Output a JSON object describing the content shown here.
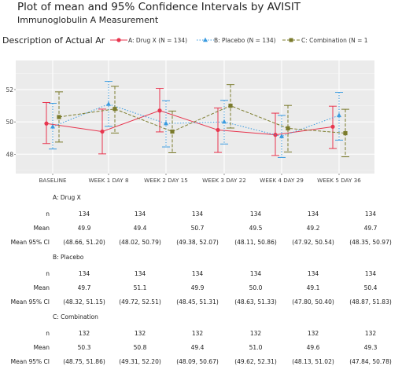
{
  "title": "Plot of mean and 95% Confidence Intervals by AVISIT",
  "subtitle": "Immunoglobulin A Measurement",
  "legend": {
    "title": "Description of Actual Ar",
    "items": [
      {
        "label": "A: Drug X (N = 134)",
        "color": "#e8364f",
        "marker": "circle",
        "dash": "solid"
      },
      {
        "label": "B: Placebo (N = 134)",
        "color": "#3a9be0",
        "marker": "triangle",
        "dash": "dotted"
      },
      {
        "label": "C: Combination (N = 1",
        "color": "#7b7b2c",
        "marker": "square",
        "dash": "dashed"
      }
    ]
  },
  "chart_data": {
    "type": "line",
    "categories": [
      "BASELINE",
      "WEEK 1 DAY 8",
      "WEEK 2 DAY 15",
      "WEEK 3 DAY 22",
      "WEEK 4 DAY 29",
      "WEEK 5 DAY 36"
    ],
    "ylim": [
      46.8,
      53.8
    ],
    "yticks": [
      48,
      50,
      52
    ],
    "grid": true,
    "legend_position": "top",
    "series": [
      {
        "name": "A: Drug X",
        "color": "#e8364f",
        "values": [
          49.9,
          49.4,
          50.7,
          49.5,
          49.2,
          49.7
        ],
        "lower": [
          48.66,
          48.02,
          49.38,
          48.11,
          47.92,
          48.35
        ],
        "upper": [
          51.2,
          50.79,
          52.07,
          50.86,
          50.54,
          50.97
        ]
      },
      {
        "name": "B: Placebo",
        "color": "#3a9be0",
        "values": [
          49.7,
          51.1,
          49.9,
          50.0,
          49.1,
          50.4
        ],
        "lower": [
          48.32,
          49.72,
          48.45,
          48.63,
          47.8,
          48.87
        ],
        "upper": [
          51.15,
          52.51,
          51.31,
          51.33,
          50.4,
          51.83
        ]
      },
      {
        "name": "C: Combination",
        "color": "#7b7b2c",
        "values": [
          50.3,
          50.8,
          49.4,
          51.0,
          49.6,
          49.3
        ],
        "lower": [
          48.75,
          49.31,
          48.09,
          49.62,
          48.13,
          47.84
        ],
        "upper": [
          51.86,
          52.2,
          50.67,
          52.31,
          51.02,
          50.78
        ]
      }
    ]
  },
  "table": {
    "row_labels": [
      "n",
      "Mean",
      "Mean 95% CI"
    ],
    "groups": [
      {
        "title": "A: Drug X",
        "n": [
          "134",
          "134",
          "134",
          "134",
          "134",
          "134"
        ],
        "mean": [
          "49.9",
          "49.4",
          "50.7",
          "49.5",
          "49.2",
          "49.7"
        ],
        "ci": [
          "(48.66, 51.20)",
          "(48.02, 50.79)",
          "(49.38, 52.07)",
          "(48.11, 50.86)",
          "(47.92, 50.54)",
          "(48.35, 50.97)"
        ]
      },
      {
        "title": "B: Placebo",
        "n": [
          "134",
          "134",
          "134",
          "134",
          "134",
          "134"
        ],
        "mean": [
          "49.7",
          "51.1",
          "49.9",
          "50.0",
          "49.1",
          "50.4"
        ],
        "ci": [
          "(48.32, 51.15)",
          "(49.72, 52.51)",
          "(48.45, 51.31)",
          "(48.63, 51.33)",
          "(47.80, 50.40)",
          "(48.87, 51.83)"
        ]
      },
      {
        "title": "C: Combination",
        "n": [
          "132",
          "132",
          "132",
          "132",
          "132",
          "132"
        ],
        "mean": [
          "50.3",
          "50.8",
          "49.4",
          "51.0",
          "49.6",
          "49.3"
        ],
        "ci": [
          "(48.75, 51.86)",
          "(49.31, 52.20)",
          "(48.09, 50.67)",
          "(49.62, 52.31)",
          "(48.13, 51.02)",
          "(47.84, 50.78)"
        ]
      }
    ]
  }
}
